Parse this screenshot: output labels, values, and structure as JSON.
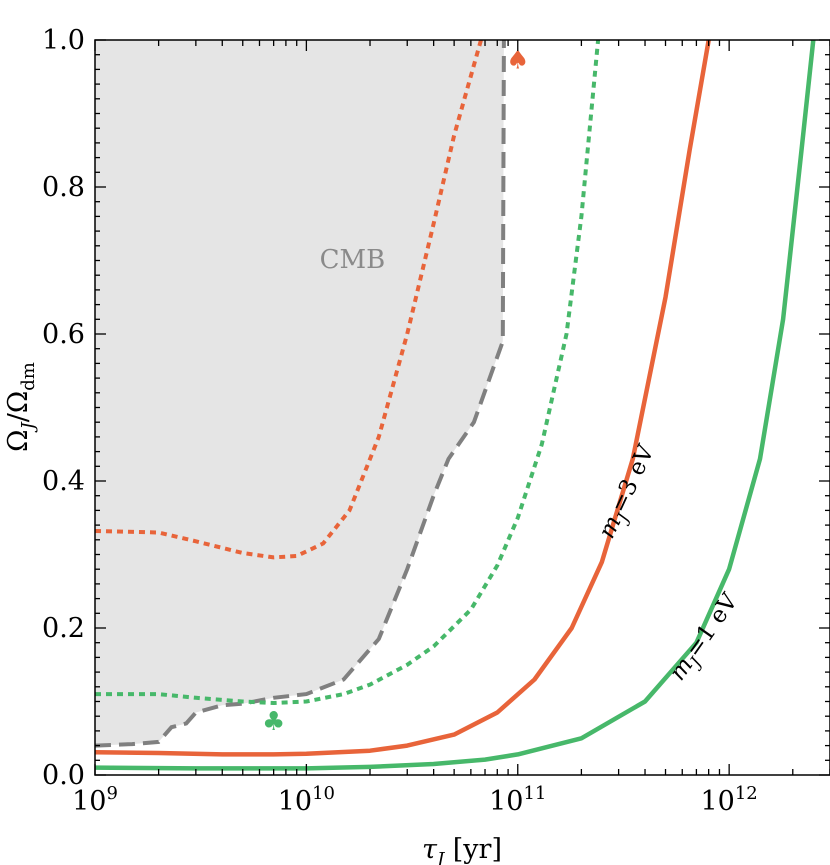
{
  "chart_data": {
    "type": "line",
    "xlabel": "τJ [yr]",
    "ylabel": "ΩJ/Ωdm",
    "x_scale": "log",
    "xlim": [
      1000000000.0,
      3000000000000.0
    ],
    "ylim": [
      0,
      1
    ],
    "x_ticks": [
      {
        "value": 1000000000.0,
        "base": "10",
        "exp": "9"
      },
      {
        "value": 10000000000.0,
        "base": "10",
        "exp": "10"
      },
      {
        "value": 100000000000.0,
        "base": "10",
        "exp": "11"
      },
      {
        "value": 1000000000000.0,
        "base": "10",
        "exp": "12"
      }
    ],
    "y_ticks": [
      {
        "value": 0.0,
        "label": "0.0"
      },
      {
        "value": 0.2,
        "label": "0.2"
      },
      {
        "value": 0.4,
        "label": "0.4"
      },
      {
        "value": 0.6,
        "label": "0.6"
      },
      {
        "value": 0.8,
        "label": "0.8"
      },
      {
        "value": 1.0,
        "label": "1.0"
      }
    ],
    "grid": false,
    "region": {
      "label": "CMB",
      "label_at": {
        "x": 16500000000.0,
        "y": 0.69
      },
      "fill_color": "#e5e5e5",
      "boundary_color": "#808080",
      "boundary_style": "dashed",
      "x": [
        1000000000.0,
        1500000000.0,
        2000000000.0,
        2300000000.0,
        2700000000.0,
        3000000000.0,
        4000000000.0,
        5000000000.0,
        7000000000.0,
        10000000000.0,
        15000000000.0,
        22000000000.0,
        30000000000.0,
        40000000000.0,
        47000000000.0,
        62000000000.0,
        85000000000.0,
        86000000000.0
      ],
      "y": [
        0.04,
        0.042,
        0.045,
        0.065,
        0.07,
        0.085,
        0.095,
        0.097,
        0.105,
        0.11,
        0.13,
        0.185,
        0.28,
        0.38,
        0.43,
        0.48,
        0.59,
        1.0
      ]
    },
    "series": [
      {
        "color": "#e8643a",
        "style": "dotted",
        "x": [
          1000000000.0,
          2000000000.0,
          3000000000.0,
          5000000000.0,
          7000000000.0,
          9000000000.0,
          12000000000.0,
          16000000000.0,
          22000000000.0,
          30000000000.0,
          40000000000.0,
          50000000000.0,
          67000000000.0
        ],
        "y": [
          0.332,
          0.33,
          0.318,
          0.302,
          0.296,
          0.298,
          0.315,
          0.36,
          0.46,
          0.6,
          0.75,
          0.87,
          1.0
        ]
      },
      {
        "color": "#e8643a",
        "style": "solid",
        "x": [
          1000000000.0,
          2000000000.0,
          4000000000.0,
          7000000000.0,
          10000000000.0,
          20000000000.0,
          30000000000.0,
          50000000000.0,
          80000000000.0,
          120000000000.0,
          180000000000.0,
          250000000000.0,
          350000000000.0,
          500000000000.0,
          650000000000.0,
          800000000000.0
        ],
        "y": [
          0.031,
          0.03,
          0.028,
          0.028,
          0.029,
          0.033,
          0.04,
          0.055,
          0.085,
          0.13,
          0.2,
          0.29,
          0.43,
          0.65,
          0.85,
          1.0
        ]
      },
      {
        "color": "#47b86a",
        "style": "dotted",
        "x": [
          1000000000.0,
          2000000000.0,
          3000000000.0,
          5000000000.0,
          7000000000.0,
          10000000000.0,
          15000000000.0,
          20000000000.0,
          30000000000.0,
          40000000000.0,
          60000000000.0,
          80000000000.0,
          100000000000.0,
          130000000000.0,
          170000000000.0,
          200000000000.0,
          240000000000.0
        ],
        "y": [
          0.11,
          0.11,
          0.105,
          0.1,
          0.098,
          0.1,
          0.11,
          0.123,
          0.15,
          0.175,
          0.225,
          0.285,
          0.35,
          0.45,
          0.6,
          0.76,
          1.0
        ]
      },
      {
        "name": "mJ=1 eV",
        "color": "#47b86a",
        "style": "solid",
        "x": [
          1000000000.0,
          3000000000.0,
          10000000000.0,
          20000000000.0,
          40000000000.0,
          70000000000.0,
          100000000000.0,
          200000000000.0,
          400000000000.0,
          700000000000.0,
          1000000000000.0,
          1400000000000.0,
          1800000000000.0,
          2200000000000.0,
          2500000000000.0
        ],
        "y": [
          0.01,
          0.009,
          0.009,
          0.011,
          0.015,
          0.021,
          0.028,
          0.05,
          0.1,
          0.18,
          0.28,
          0.43,
          0.62,
          0.85,
          1.0
        ]
      }
    ],
    "curve_labels": [
      {
        "text": "mJ=3 eV",
        "prefix": "m",
        "sub": "J",
        "suffix": "=3 eV",
        "color": "#e8643a"
      },
      {
        "text": "mJ=1 eV",
        "prefix": "m",
        "sub": "J",
        "suffix": "=1 eV",
        "color": "#47b86a"
      }
    ],
    "markers": [
      {
        "symbol": "♠",
        "color": "#e8643a",
        "x": 100000000000.0,
        "y": 0.975
      },
      {
        "symbol": "♣",
        "color": "#47b86a",
        "x": 7000000000.0,
        "y": 0.075
      }
    ]
  }
}
